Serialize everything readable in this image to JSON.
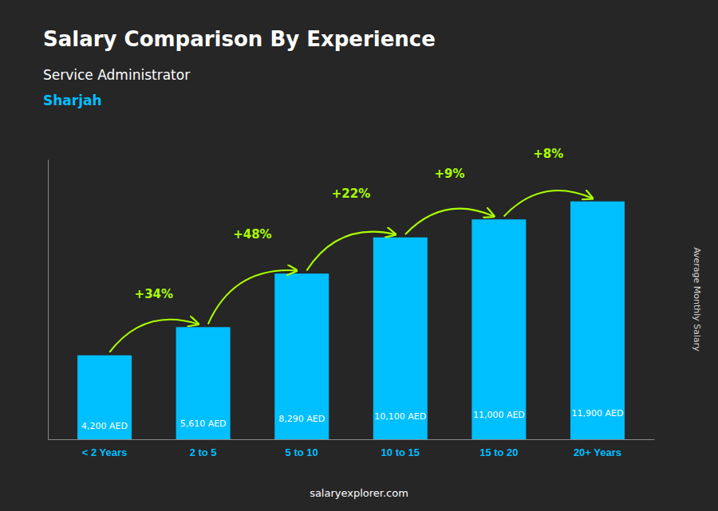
{
  "chart_data": {
    "type": "bar",
    "title": "Salary Comparison By Experience",
    "subtitle": "Service Administrator",
    "location": "Sharjah",
    "ylabel": "Average Monthly Salary",
    "watermark": "salaryexplorer.com",
    "categories": [
      "< 2 Years",
      "2 to 5",
      "5 to 10",
      "10 to 15",
      "15 to 20",
      "20+ Years"
    ],
    "values": [
      4200,
      5610,
      8290,
      10100,
      11000,
      11900
    ],
    "value_labels": [
      "4,200 AED",
      "5,610 AED",
      "8,290 AED",
      "10,100 AED",
      "11,000 AED",
      "11,900 AED"
    ],
    "data_labels": true,
    "annotations": [
      "+34%",
      "+48%",
      "+22%",
      "+9%",
      "+8%"
    ],
    "color": "#00BFFF",
    "ylim": [
      0,
      14000
    ],
    "tick_labels": "x",
    "grid": false
  }
}
